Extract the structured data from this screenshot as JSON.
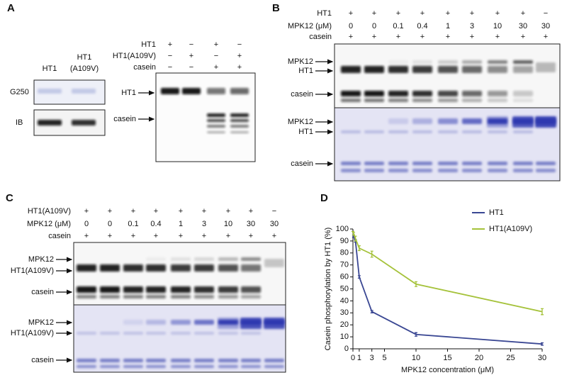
{
  "panel_labels": [
    "A",
    "B",
    "C",
    "D"
  ],
  "panel_a": {
    "lane_labels": [
      [
        "HT1"
      ],
      [
        "HT1",
        "(A109V)"
      ]
    ],
    "blot_labels": [
      "G250",
      "IB"
    ],
    "rows": [
      {
        "label": "HT1",
        "values": [
          "+",
          "−",
          "+",
          "−"
        ]
      },
      {
        "label": "HT1(A109V)",
        "values": [
          "−",
          "+",
          "−",
          "+"
        ]
      },
      {
        "label": "casein",
        "values": [
          "−",
          "−",
          "+",
          "+"
        ]
      }
    ],
    "band_labels": [
      "HT1",
      "casein"
    ]
  },
  "panel_b": {
    "rows": [
      {
        "label": "HT1",
        "values": [
          "+",
          "+",
          "+",
          "+",
          "+",
          "+",
          "+",
          "+",
          "−"
        ]
      },
      {
        "label": "MPK12 (μM)",
        "values": [
          0,
          0,
          0.1,
          0.4,
          1,
          3,
          10,
          30,
          30
        ]
      },
      {
        "label": "casein",
        "values": [
          "+",
          "+",
          "+",
          "+",
          "+",
          "+",
          "+",
          "+",
          "+"
        ]
      }
    ],
    "autorad_labels": [
      "MPK12",
      "HT1",
      "casein"
    ],
    "stain_labels": [
      "MPK12",
      "HT1",
      "casein"
    ]
  },
  "panel_c": {
    "rows": [
      {
        "label": "HT1(A109V)",
        "values": [
          "+",
          "+",
          "+",
          "+",
          "+",
          "+",
          "+",
          "+",
          "−"
        ]
      },
      {
        "label": "MPK12 (μM)",
        "values": [
          0,
          0,
          0.1,
          0.4,
          1,
          3,
          10,
          30,
          30
        ]
      },
      {
        "label": "casein",
        "values": [
          "+",
          "+",
          "+",
          "+",
          "+",
          "+",
          "+",
          "+",
          "+"
        ]
      }
    ],
    "autorad_labels": [
      "MPK12",
      "HT1(A109V)",
      "casein"
    ],
    "stain_labels": [
      "MPK12",
      "HT1(A109V)",
      "casein"
    ]
  },
  "chart_data": {
    "type": "line",
    "y_label": "Casein phosphorylation by HT1 (%)",
    "x_label": "MPK12 concentration (μM)",
    "x": [
      0,
      0.1,
      0.4,
      1,
      3,
      10,
      30
    ],
    "series": [
      {
        "name": "HT1",
        "color": "#3a4793",
        "values": [
          98,
          94,
          90,
          60,
          31,
          12,
          4
        ],
        "errors": [
          0,
          1,
          1,
          1,
          1,
          1.5,
          1
        ]
      },
      {
        "name": "HT1(A109V)",
        "color": "#a5c23a",
        "values": [
          98,
          96,
          92,
          84,
          79,
          54,
          31
        ],
        "errors": [
          0,
          1,
          2,
          2,
          2.5,
          2,
          2.5
        ]
      }
    ],
    "xlim": [
      0,
      30
    ],
    "xticks": [
      0,
      1,
      3,
      5,
      10,
      15,
      20,
      25,
      30
    ],
    "ylim": [
      0,
      100
    ],
    "yticks": [
      0,
      10,
      20,
      30,
      40,
      50,
      60,
      70,
      80,
      90,
      100
    ],
    "legend": "top-right"
  }
}
